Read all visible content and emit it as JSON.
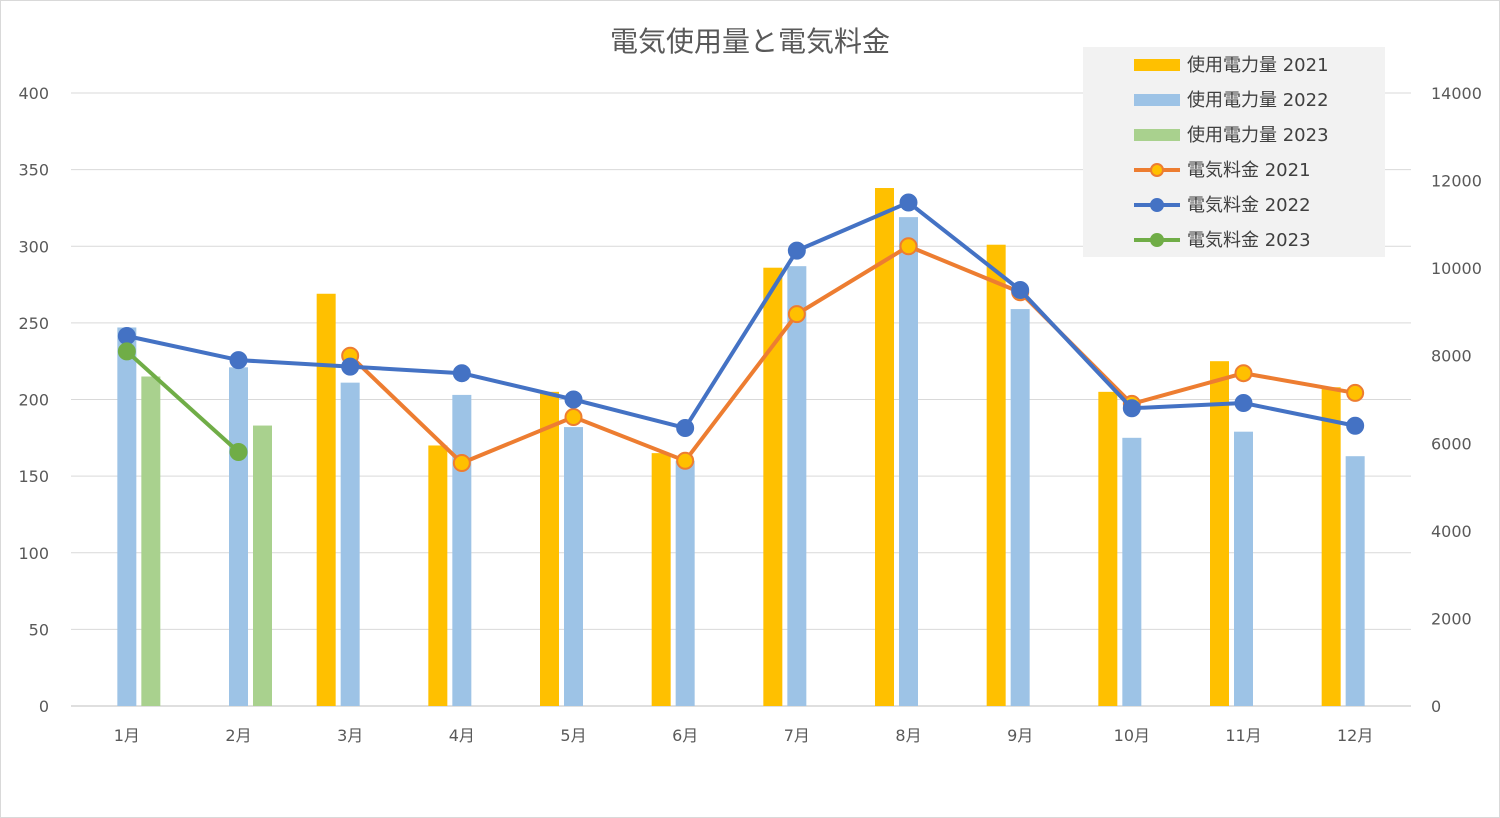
{
  "chart_data": {
    "type": "bar",
    "title": "電気使用量と電気料金",
    "categories": [
      "1月",
      "2月",
      "3月",
      "4月",
      "5月",
      "6月",
      "7月",
      "8月",
      "9月",
      "10月",
      "11月",
      "12月"
    ],
    "y_left": {
      "ylim": [
        0,
        400
      ],
      "ticks": [
        0,
        50,
        100,
        150,
        200,
        250,
        300,
        350,
        400
      ]
    },
    "y_right": {
      "ylim": [
        0,
        14000
      ],
      "ticks": [
        0,
        2000,
        4000,
        6000,
        8000,
        10000,
        12000,
        14000
      ]
    },
    "grid": true,
    "legend_position": "top-right",
    "bar_series": [
      {
        "name": "使用電力量 2021",
        "color": "#FFC000",
        "values": [
          null,
          null,
          269,
          170,
          205,
          165,
          286,
          338,
          301,
          205,
          225,
          208
        ]
      },
      {
        "name": "使用電力量 2022",
        "color": "#9DC3E6",
        "values": [
          247,
          221,
          211,
          203,
          182,
          160,
          287,
          319,
          259,
          175,
          179,
          163
        ]
      },
      {
        "name": "使用電力量 2023",
        "color": "#A9D18E",
        "values": [
          215,
          183,
          null,
          null,
          null,
          null,
          null,
          null,
          null,
          null,
          null,
          null
        ]
      }
    ],
    "line_series": [
      {
        "name": "電気料金 2021",
        "color": "#ED7D31",
        "marker_fill": "#FFC000",
        "values": [
          null,
          null,
          8000,
          5550,
          6600,
          5600,
          8950,
          10500,
          9450,
          6900,
          7600,
          7150
        ]
      },
      {
        "name": "電気料金 2022",
        "color": "#4472C4",
        "marker_fill": "#4472C4",
        "values": [
          8450,
          7900,
          7750,
          7600,
          7000,
          6350,
          10400,
          11500,
          9500,
          6800,
          6920,
          6400
        ]
      },
      {
        "name": "電気料金 2023",
        "color": "#70AD47",
        "marker_fill": "#70AD47",
        "values": [
          8100,
          5800,
          null,
          null,
          null,
          null,
          null,
          null,
          null,
          null,
          null,
          null
        ]
      }
    ]
  }
}
